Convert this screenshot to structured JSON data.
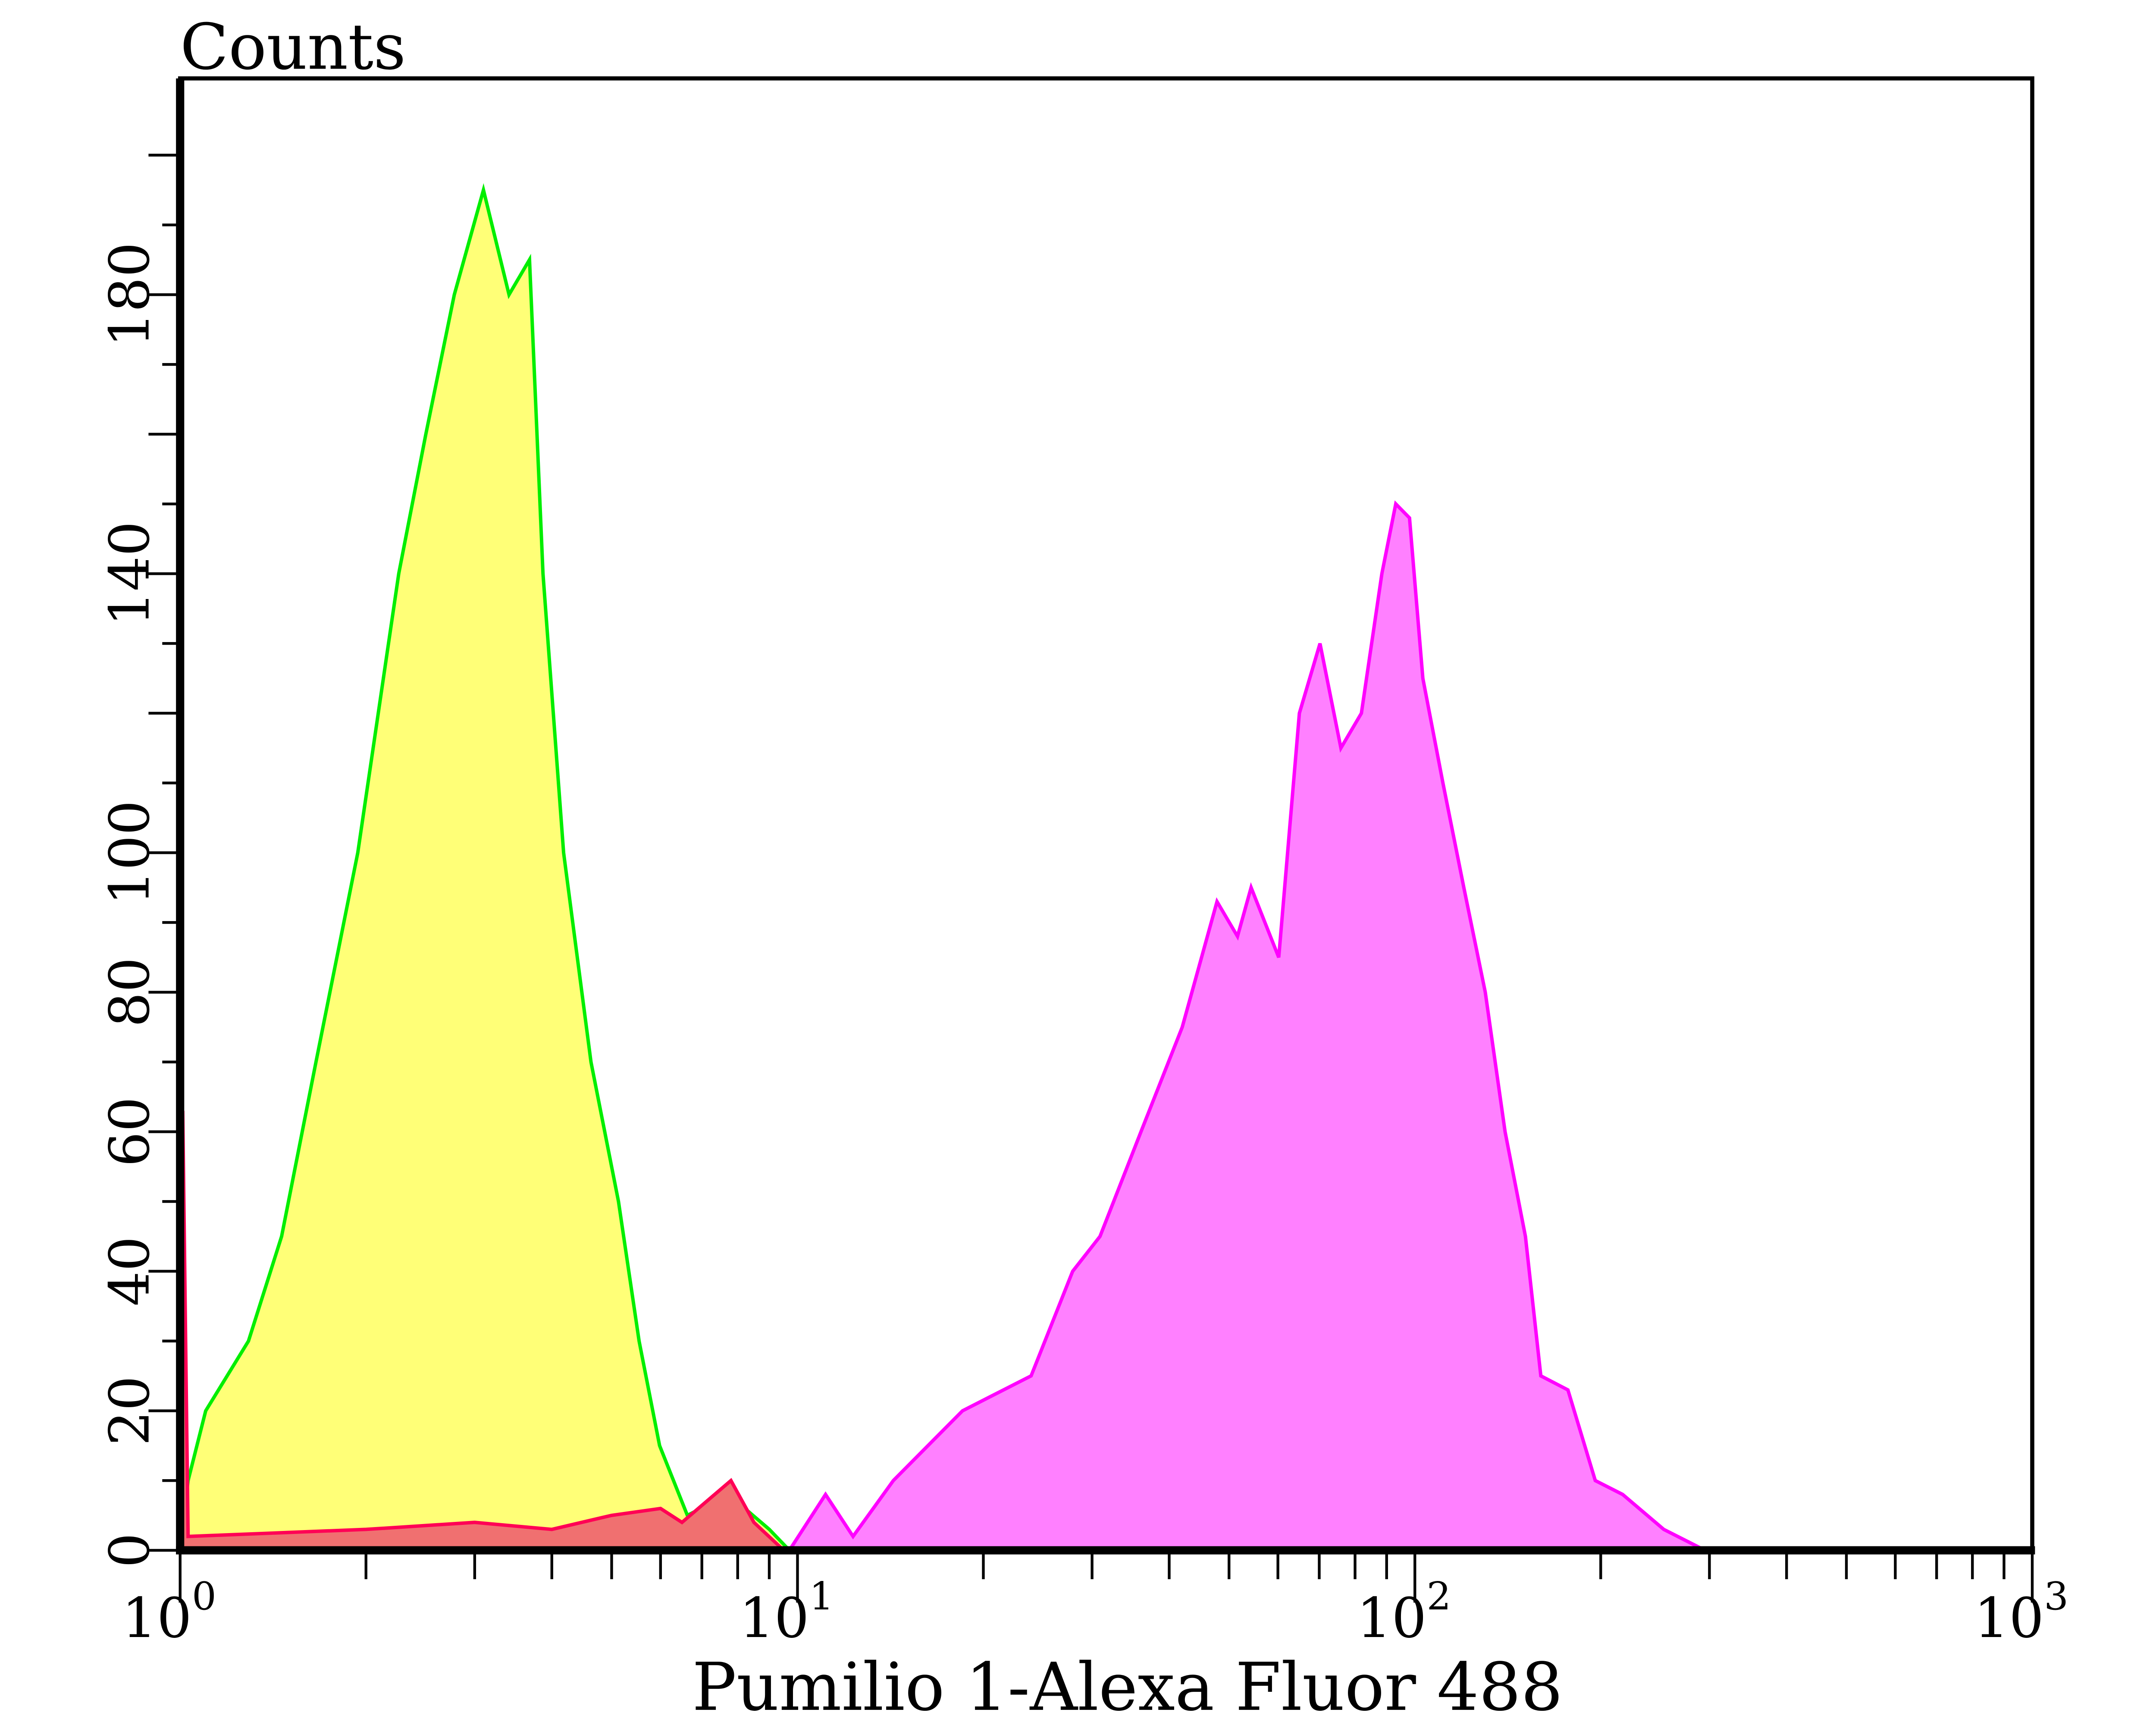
{
  "chart_data": {
    "type": "area",
    "title": "",
    "ylabel": "Counts",
    "xlabel": "Pumilio 1-Alexa Fluor 488",
    "x_scale": "log",
    "xlim": [
      1,
      1000
    ],
    "ylim": [
      0,
      211
    ],
    "x_ticks": [
      1,
      10,
      100,
      1000
    ],
    "x_tick_labels": [
      {
        "base": "10",
        "exp": "0"
      },
      {
        "base": "10",
        "exp": "1"
      },
      {
        "base": "10",
        "exp": "2"
      },
      {
        "base": "10",
        "exp": "3"
      }
    ],
    "y_ticks": [
      0,
      20,
      40,
      60,
      80,
      100,
      140,
      180
    ],
    "y_tick_labels": [
      "0",
      "20",
      "40",
      "60",
      "80",
      "100",
      "140",
      "180"
    ],
    "grid": false,
    "series": [
      {
        "fill": "#ffff77",
        "stroke": "#00ee00",
        "points": [
          [
            1.0,
            0
          ],
          [
            1.03,
            10
          ],
          [
            1.1,
            20
          ],
          [
            1.29,
            30
          ],
          [
            1.46,
            45
          ],
          [
            1.66,
            70
          ],
          [
            1.94,
            100
          ],
          [
            2.26,
            140
          ],
          [
            2.5,
            160
          ],
          [
            2.78,
            180
          ],
          [
            3.1,
            195
          ],
          [
            3.41,
            180
          ],
          [
            3.68,
            185
          ],
          [
            3.87,
            140
          ],
          [
            4.18,
            100
          ],
          [
            4.63,
            70
          ],
          [
            5.13,
            50
          ],
          [
            5.54,
            30
          ],
          [
            5.98,
            15
          ],
          [
            6.63,
            5
          ],
          [
            7.73,
            8
          ],
          [
            9.0,
            3
          ],
          [
            9.7,
            0
          ]
        ]
      },
      {
        "fill": "#ff80ff",
        "stroke": "#ff00ff",
        "points": [
          [
            9.7,
            0
          ],
          [
            11.1,
            8
          ],
          [
            12.3,
            2
          ],
          [
            14.3,
            10
          ],
          [
            18.5,
            20
          ],
          [
            23.9,
            25
          ],
          [
            27.9,
            40
          ],
          [
            30.9,
            45
          ],
          [
            36.0,
            60
          ],
          [
            42.0,
            75
          ],
          [
            47.8,
            93
          ],
          [
            51.6,
            88
          ],
          [
            54.3,
            95
          ],
          [
            60.2,
            85
          ],
          [
            65.0,
            120
          ],
          [
            70.2,
            130
          ],
          [
            75.9,
            115
          ],
          [
            81.9,
            120
          ],
          [
            88.4,
            140
          ],
          [
            93.1,
            150
          ],
          [
            98.0,
            148
          ],
          [
            103,
            125
          ],
          [
            111,
            110
          ],
          [
            120,
            95
          ],
          [
            130,
            80
          ],
          [
            140,
            60
          ],
          [
            151,
            45
          ],
          [
            160,
            25
          ],
          [
            177,
            23
          ],
          [
            196,
            10
          ],
          [
            217,
            8
          ],
          [
            253,
            3
          ],
          [
            295,
            0
          ]
        ]
      },
      {
        "fill": "#f07070",
        "stroke": "#ff0055",
        "points": [
          [
            1.0,
            0
          ],
          [
            1.01,
            63
          ],
          [
            1.03,
            2
          ],
          [
            2,
            3
          ],
          [
            3,
            4
          ],
          [
            4,
            3
          ],
          [
            5,
            5
          ],
          [
            6,
            6
          ],
          [
            6.5,
            4
          ],
          [
            7.8,
            10
          ],
          [
            8.5,
            4
          ],
          [
            9.5,
            0
          ]
        ]
      }
    ]
  }
}
